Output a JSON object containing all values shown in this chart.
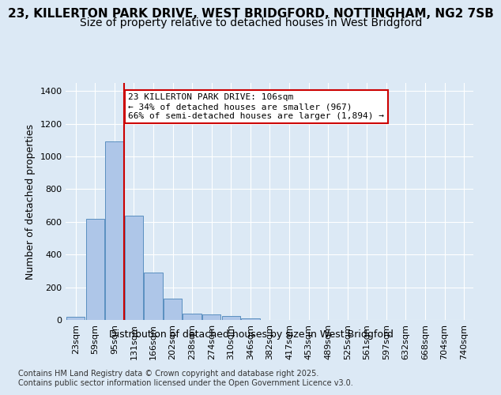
{
  "title_line1": "23, KILLERTON PARK DRIVE, WEST BRIDGFORD, NOTTINGHAM, NG2 7SB",
  "title_line2": "Size of property relative to detached houses in West Bridgford",
  "xlabel": "Distribution of detached houses by size in West Bridgford",
  "ylabel": "Number of detached properties",
  "bins": [
    "23sqm",
    "59sqm",
    "95sqm",
    "131sqm",
    "166sqm",
    "202sqm",
    "238sqm",
    "274sqm",
    "310sqm",
    "346sqm",
    "382sqm",
    "417sqm",
    "453sqm",
    "489sqm",
    "525sqm",
    "561sqm",
    "597sqm",
    "632sqm",
    "668sqm",
    "704sqm",
    "740sqm"
  ],
  "bar_values": [
    20,
    620,
    1090,
    640,
    290,
    130,
    40,
    35,
    25,
    10,
    0,
    0,
    0,
    0,
    0,
    0,
    0,
    0,
    0,
    0,
    0
  ],
  "bar_color": "#aec6e8",
  "bar_edge_color": "#5a8fc0",
  "vline_x": 2.5,
  "annotation_text": "23 KILLERTON PARK DRIVE: 106sqm\n← 34% of detached houses are smaller (967)\n66% of semi-detached houses are larger (1,894) →",
  "annotation_box_color": "#ffffff",
  "annotation_box_edge_color": "#cc0000",
  "vline_color": "#cc0000",
  "background_color": "#dce9f5",
  "plot_bg_color": "#dce9f5",
  "ylim": [
    0,
    1450
  ],
  "yticks": [
    0,
    200,
    400,
    600,
    800,
    1000,
    1200,
    1400
  ],
  "footer_line1": "Contains HM Land Registry data © Crown copyright and database right 2025.",
  "footer_line2": "Contains public sector information licensed under the Open Government Licence v3.0.",
  "title_fontsize": 11,
  "subtitle_fontsize": 10,
  "axis_label_fontsize": 9,
  "tick_fontsize": 8,
  "annotation_fontsize": 8,
  "footer_fontsize": 7
}
